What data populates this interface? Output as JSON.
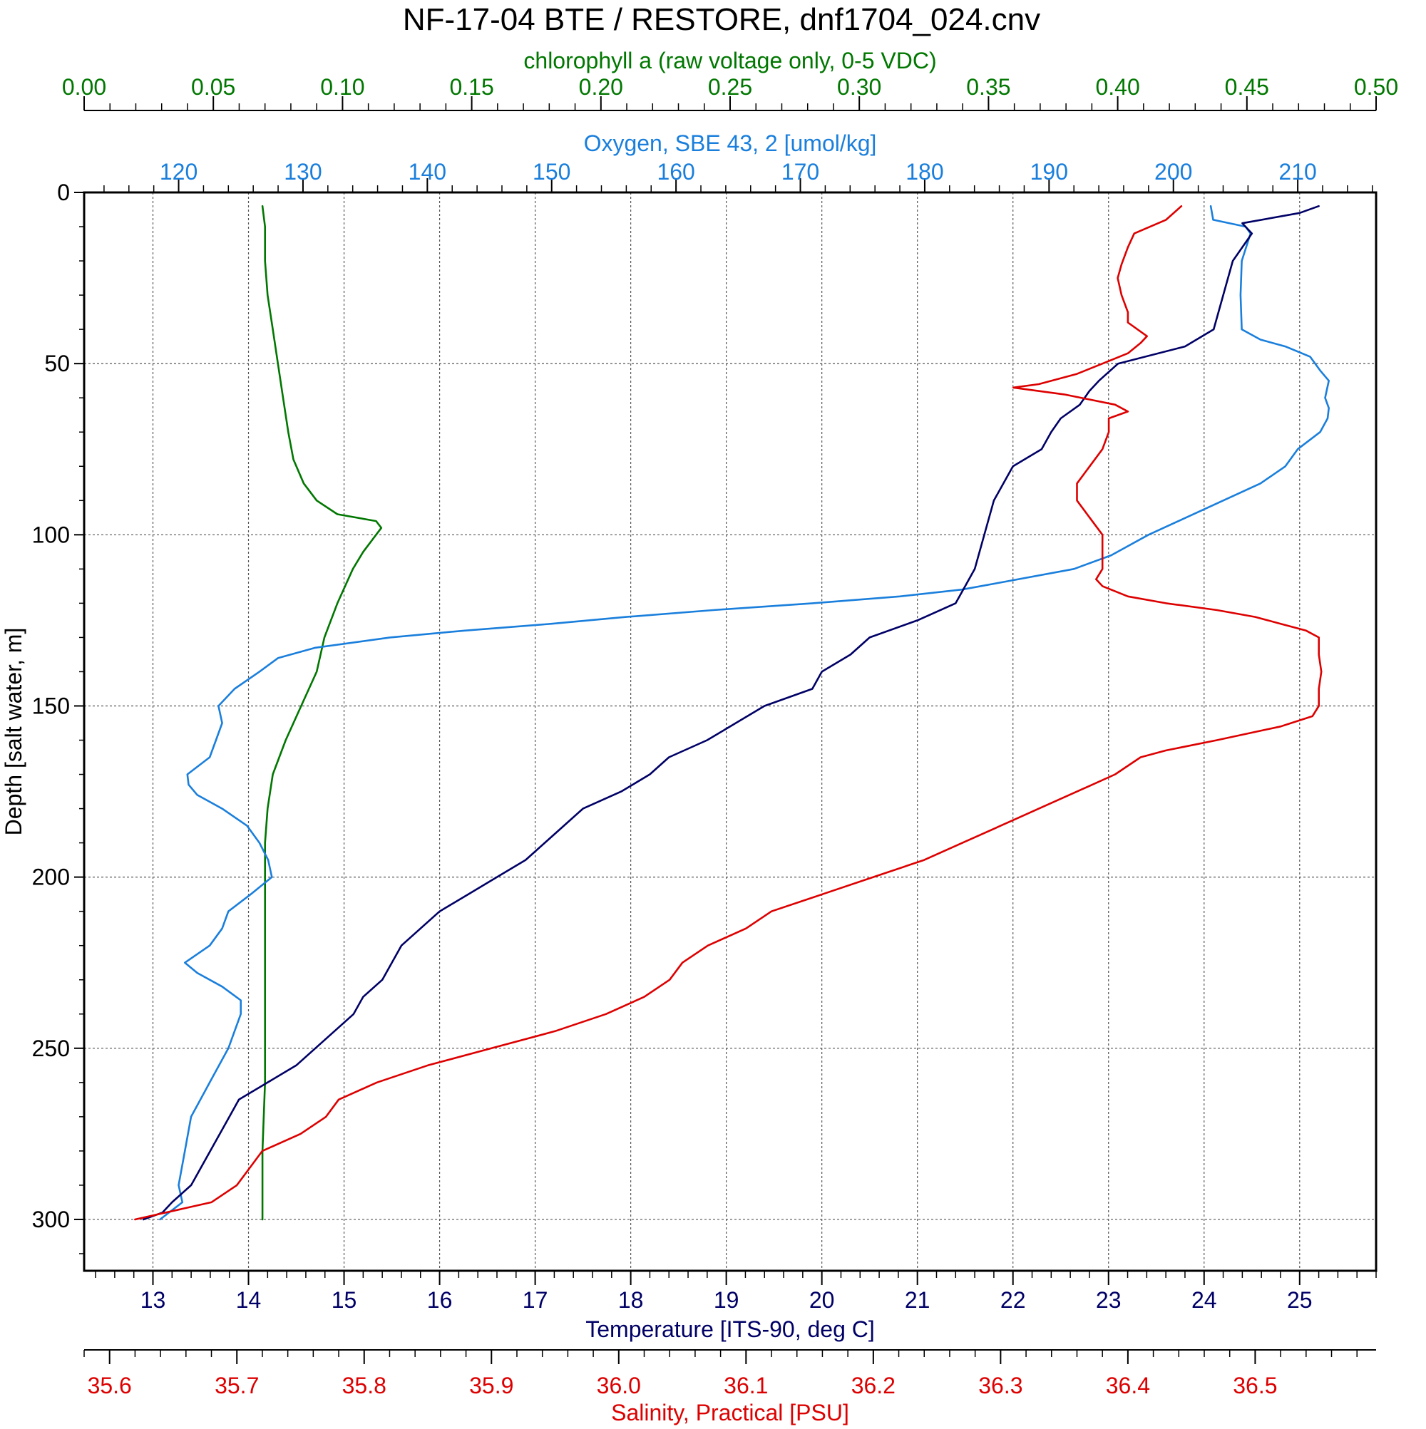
{
  "chart_data": {
    "type": "line",
    "title": "NF-17-04 BTE / RESTORE, dnf1704_024.cnv",
    "y_axis": {
      "label": "Depth [salt water, m]",
      "range": [
        0,
        315
      ],
      "inverted": true,
      "ticks": [
        "0",
        "50",
        "100",
        "150",
        "200",
        "250",
        "300"
      ],
      "tick_values": [
        0,
        50,
        100,
        150,
        200,
        250,
        300
      ]
    },
    "grid": true,
    "axes": {
      "chlorophyll": {
        "label": "chlorophyll a (raw voltage only, 0-5 VDC)",
        "position": "top-outer",
        "color": "#007700",
        "range": [
          0.0,
          0.5
        ],
        "ticks": [
          "0.00",
          "0.05",
          "0.10",
          "0.15",
          "0.20",
          "0.25",
          "0.30",
          "0.35",
          "0.40",
          "0.45",
          "0.50"
        ],
        "tick_values": [
          0.0,
          0.05,
          0.1,
          0.15,
          0.2,
          0.25,
          0.3,
          0.35,
          0.4,
          0.45,
          0.5
        ]
      },
      "oxygen": {
        "label": "Oxygen, SBE 43, 2 [umol/kg]",
        "position": "top-inner",
        "color": "#1a7fdc",
        "range": [
          112.4,
          216.3
        ],
        "ticks": [
          "120",
          "130",
          "140",
          "150",
          "160",
          "170",
          "180",
          "190",
          "200",
          "210"
        ],
        "tick_values": [
          120,
          130,
          140,
          150,
          160,
          170,
          180,
          190,
          200,
          210
        ]
      },
      "temperature": {
        "label": "Temperature [ITS-90, deg C]",
        "position": "bottom-inner",
        "color": "#000066",
        "range": [
          12.28,
          25.8
        ],
        "ticks": [
          "13",
          "14",
          "15",
          "16",
          "17",
          "18",
          "19",
          "20",
          "21",
          "22",
          "23",
          "24",
          "25"
        ],
        "tick_values": [
          13,
          14,
          15,
          16,
          17,
          18,
          19,
          20,
          21,
          22,
          23,
          24,
          25
        ]
      },
      "salinity": {
        "label": "Salinity, Practical [PSU]",
        "position": "bottom-outer",
        "color": "#dd0000",
        "range": [
          35.58,
          36.595
        ],
        "ticks": [
          "35.6",
          "35.7",
          "35.8",
          "35.9",
          "36.0",
          "36.1",
          "36.2",
          "36.3",
          "36.4",
          "36.5"
        ],
        "tick_values": [
          35.6,
          35.7,
          35.8,
          35.9,
          36.0,
          36.1,
          36.2,
          36.3,
          36.4,
          36.5
        ]
      }
    },
    "series": [
      {
        "axis": "chlorophyll",
        "color": "#007700",
        "depth": [
          4,
          10,
          20,
          30,
          40,
          50,
          60,
          70,
          78,
          85,
          90,
          94,
          96,
          98,
          100,
          105,
          110,
          120,
          130,
          140,
          150,
          160,
          170,
          180,
          190,
          200,
          220,
          240,
          260,
          280,
          300
        ],
        "values": [
          0.069,
          0.07,
          0.07,
          0.071,
          0.073,
          0.075,
          0.077,
          0.079,
          0.081,
          0.085,
          0.09,
          0.098,
          0.113,
          0.115,
          0.113,
          0.108,
          0.104,
          0.098,
          0.093,
          0.09,
          0.084,
          0.078,
          0.073,
          0.071,
          0.07,
          0.07,
          0.07,
          0.07,
          0.07,
          0.069,
          0.069
        ]
      },
      {
        "axis": "oxygen",
        "color": "#1a7fdc",
        "depth": [
          4,
          8,
          10,
          12,
          20,
          30,
          40,
          43,
          45,
          48,
          52,
          55,
          60,
          63,
          66,
          70,
          75,
          80,
          85,
          90,
          95,
          100,
          106,
          110,
          114,
          116,
          118,
          120,
          122,
          124,
          126,
          128,
          130,
          133,
          136,
          140,
          145,
          150,
          155,
          160,
          165,
          170,
          173,
          176,
          180,
          185,
          190,
          195,
          200,
          205,
          210,
          215,
          220,
          225,
          228,
          232,
          236,
          240,
          250,
          260,
          270,
          280,
          290,
          295,
          300
        ],
        "values": [
          203,
          203.2,
          205.8,
          206.2,
          205.5,
          205.4,
          205.5,
          207,
          209,
          211,
          211.8,
          212.5,
          212.2,
          212.5,
          212.4,
          211.8,
          210,
          209,
          207,
          204,
          201,
          198,
          195,
          192,
          186,
          183,
          178,
          171,
          163,
          156,
          150,
          143,
          137,
          131,
          128,
          126.5,
          124.5,
          123.2,
          123.5,
          123,
          122.5,
          120.7,
          120.8,
          121.5,
          123.5,
          125.5,
          126.5,
          127.2,
          127.5,
          125.8,
          124,
          123.5,
          122.5,
          120.5,
          121.5,
          123.5,
          125,
          125,
          124,
          122.5,
          121,
          120.5,
          120,
          120.3,
          118.5
        ]
      },
      {
        "axis": "temperature",
        "color": "#000066",
        "depth": [
          4,
          6,
          9,
          12,
          20,
          30,
          40,
          45,
          50,
          55,
          58,
          62,
          66,
          70,
          75,
          80,
          85,
          90,
          100,
          110,
          115,
          120,
          125,
          130,
          135,
          140,
          145,
          150,
          155,
          160,
          165,
          170,
          175,
          180,
          185,
          190,
          195,
          200,
          205,
          210,
          215,
          220,
          225,
          230,
          235,
          240,
          245,
          250,
          255,
          260,
          265,
          270,
          275,
          280,
          285,
          290,
          295,
          298,
          300
        ],
        "values": [
          25.2,
          25.0,
          24.4,
          24.5,
          24.3,
          24.2,
          24.1,
          23.8,
          23.1,
          22.9,
          22.8,
          22.7,
          22.5,
          22.4,
          22.3,
          22.0,
          21.9,
          21.8,
          21.7,
          21.6,
          21.5,
          21.4,
          21.0,
          20.5,
          20.3,
          20.0,
          19.9,
          19.4,
          19.1,
          18.8,
          18.4,
          18.2,
          17.9,
          17.5,
          17.3,
          17.1,
          16.9,
          16.6,
          16.3,
          16.0,
          15.8,
          15.6,
          15.5,
          15.4,
          15.2,
          15.1,
          14.9,
          14.7,
          14.5,
          14.2,
          13.9,
          13.8,
          13.7,
          13.6,
          13.5,
          13.4,
          13.2,
          13.1,
          12.9
        ]
      },
      {
        "axis": "salinity",
        "color": "#dd0000",
        "depth": [
          4,
          8,
          12,
          16,
          21,
          25,
          30,
          35,
          38,
          42,
          44,
          47,
          50,
          53,
          56,
          57,
          59,
          62,
          64,
          66,
          70,
          75,
          80,
          85,
          90,
          95,
          100,
          105,
          110,
          113,
          115,
          118,
          120,
          122,
          124,
          126,
          127,
          128,
          130,
          135,
          140,
          145,
          150,
          153,
          156,
          160,
          163,
          165,
          170,
          175,
          180,
          185,
          190,
          195,
          200,
          205,
          210,
          215,
          220,
          225,
          230,
          235,
          240,
          245,
          250,
          255,
          260,
          265,
          270,
          275,
          280,
          285,
          290,
          295,
          300
        ],
        "values": [
          36.442,
          36.43,
          36.405,
          36.4,
          36.395,
          36.392,
          36.395,
          36.4,
          36.4,
          36.415,
          36.41,
          36.4,
          36.38,
          36.36,
          36.33,
          36.31,
          36.35,
          36.39,
          36.4,
          36.385,
          36.385,
          36.38,
          36.37,
          36.36,
          36.36,
          36.37,
          36.38,
          36.38,
          36.38,
          36.375,
          36.38,
          36.4,
          36.43,
          36.47,
          36.5,
          36.52,
          36.53,
          36.54,
          36.55,
          36.55,
          36.552,
          36.55,
          36.55,
          36.545,
          36.52,
          36.47,
          36.43,
          36.41,
          36.39,
          36.36,
          36.33,
          36.3,
          36.27,
          36.24,
          36.2,
          36.16,
          36.12,
          36.1,
          36.07,
          36.05,
          36.04,
          36.02,
          35.99,
          35.95,
          35.9,
          35.85,
          35.81,
          35.78,
          35.77,
          35.75,
          35.72,
          35.71,
          35.7,
          35.68,
          35.62
        ]
      }
    ]
  }
}
